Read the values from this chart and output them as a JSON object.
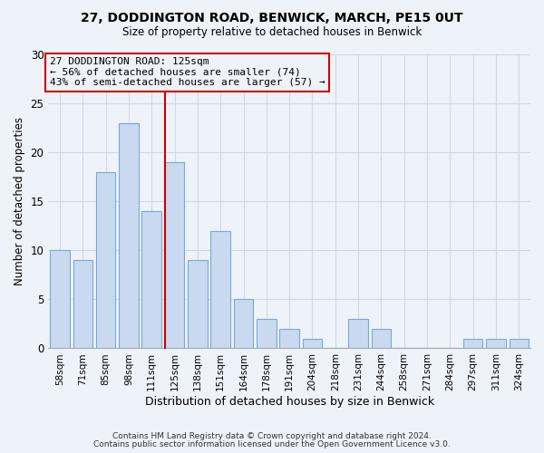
{
  "title1": "27, DODDINGTON ROAD, BENWICK, MARCH, PE15 0UT",
  "title2": "Size of property relative to detached houses in Benwick",
  "xlabel": "Distribution of detached houses by size in Benwick",
  "ylabel": "Number of detached properties",
  "categories": [
    "58sqm",
    "71sqm",
    "85sqm",
    "98sqm",
    "111sqm",
    "125sqm",
    "138sqm",
    "151sqm",
    "164sqm",
    "178sqm",
    "191sqm",
    "204sqm",
    "218sqm",
    "231sqm",
    "244sqm",
    "258sqm",
    "271sqm",
    "284sqm",
    "297sqm",
    "311sqm",
    "324sqm"
  ],
  "values": [
    10,
    9,
    18,
    23,
    14,
    19,
    9,
    12,
    5,
    3,
    2,
    1,
    0,
    3,
    2,
    0,
    0,
    0,
    1,
    1,
    1
  ],
  "bar_color": "#c8d9f0",
  "bar_edge_color": "#7aaad0",
  "highlight_line_color": "#cc0000",
  "annotation_title": "27 DODDINGTON ROAD: 125sqm",
  "annotation_line1": "← 56% of detached houses are smaller (74)",
  "annotation_line2": "43% of semi-detached houses are larger (57) →",
  "annotation_box_edge_color": "#cc0000",
  "ylim": [
    0,
    30
  ],
  "yticks": [
    0,
    5,
    10,
    15,
    20,
    25,
    30
  ],
  "footer1": "Contains HM Land Registry data © Crown copyright and database right 2024.",
  "footer2": "Contains public sector information licensed under the Open Government Licence v3.0.",
  "background_color": "#eef2f9",
  "grid_color": "#d0d8e8"
}
